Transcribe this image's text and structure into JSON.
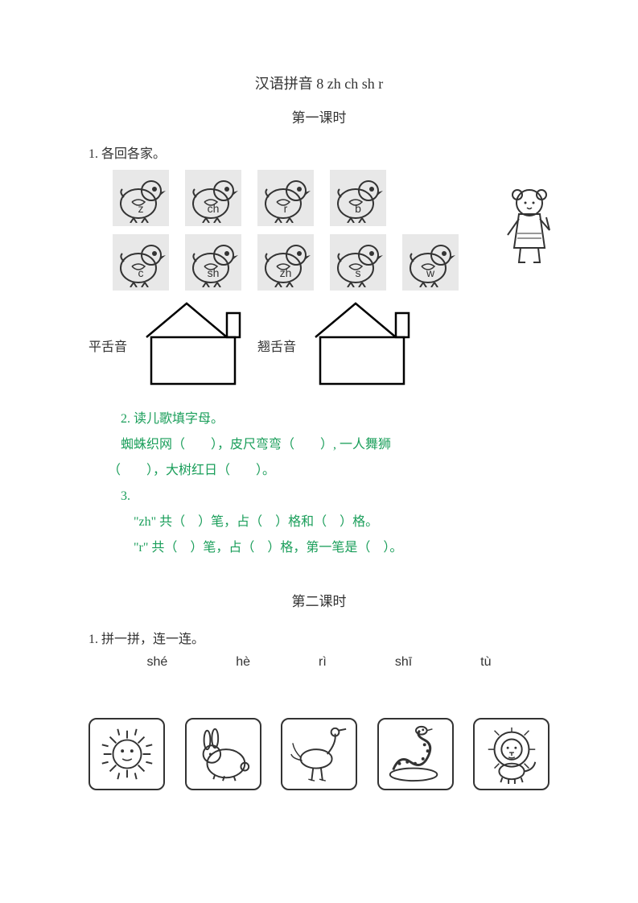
{
  "title": "汉语拼音 8 zh ch sh r",
  "lesson1": {
    "subtitle": "第一课时",
    "q1": "1. 各回各家。",
    "row1": [
      "z",
      "ch",
      "r",
      "b"
    ],
    "row2": [
      "c",
      "sh",
      "zh",
      "s",
      "w"
    ],
    "house_labels": {
      "flat": "平舌音",
      "retro": "翘舌音"
    },
    "q2_label": "2. 读儿歌填字母。",
    "q2_line1": "蜘蛛织网（　　），皮尺弯弯（　　）, 一人舞狮",
    "q2_line2": "（　　），大树红日（　　）。",
    "q3_label": "3.",
    "q3_line1": "\"zh\" 共（　）笔，占（　）格和（　）格。",
    "q3_line2": "\"r\" 共（　）笔，占（　）格，第一笔是（　）。"
  },
  "lesson2": {
    "subtitle": "第二课时",
    "q1": "1. 拼一拼，连一连。",
    "pinyin": [
      "shé",
      "hè",
      "rì",
      "shī",
      "tù"
    ],
    "pictures": [
      "sun",
      "rabbit",
      "crane",
      "snake",
      "lion"
    ]
  },
  "colors": {
    "text": "#333333",
    "accent": "#1a9e5a",
    "chick_bg": "#e8e8e8",
    "border": "#333333",
    "page_bg": "#ffffff"
  },
  "chick_svg_stroke": "#333333"
}
